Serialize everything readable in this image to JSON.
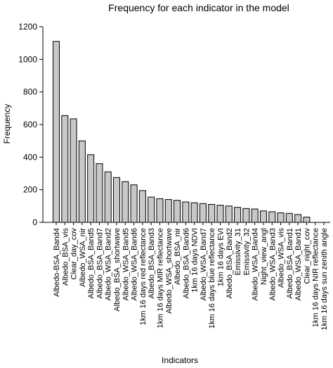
{
  "chart_data": {
    "type": "bar",
    "title": "Frequency for each indicator in the model",
    "xlabel": "Indicators",
    "ylabel": "Frequency",
    "ylim": [
      0,
      1200
    ],
    "yticks": [
      0,
      200,
      400,
      600,
      800,
      1000,
      1200
    ],
    "bar_color": "#c8c8c8",
    "categories": [
      "Albedo-BSA_Band4",
      "Albedo_BSA_vis",
      "Clear_day_cov",
      "Albedo_WSA_nir",
      "Albedo_BSA_Band5",
      "Albedo_BSA_Band7",
      "Albedo_WSA_Band2",
      "Albedo_BSA_shortwave",
      "Albedo_WSA_Band5",
      "Albedo_WSA_Band6",
      "1km 16 days red reflectance",
      "Albedo_BSA_Band3",
      "1km 16 days MIR reflectance",
      "Albedo_WSA_shortwave",
      "Albedo_BSA_nir",
      "Albedo_BSA_Band6",
      "1km 16 days NDVI",
      "Albedo_WSA_Band7",
      "1km 16 days blue reflectance",
      "1km 16 days EVI",
      "Albedo_BSA_Band2",
      "Emissivity_31",
      "Emissivity_32",
      "Albedo_WSA_Band4",
      "Night_view_angl",
      "Albedo_WSA_Band3",
      "Albedo_WSA_vis",
      "Albedo_BSA_Band1",
      "Albedo_WSA_Band1",
      "Clear_night_cov",
      "1km 16 days NIR reflectance",
      "1km 16 days sun zenith angle"
    ],
    "values": [
      1110,
      655,
      635,
      500,
      415,
      360,
      310,
      275,
      250,
      230,
      195,
      155,
      145,
      140,
      135,
      125,
      120,
      115,
      110,
      105,
      100,
      92,
      85,
      82,
      70,
      65,
      58,
      55,
      48,
      32,
      0,
      0
    ]
  }
}
